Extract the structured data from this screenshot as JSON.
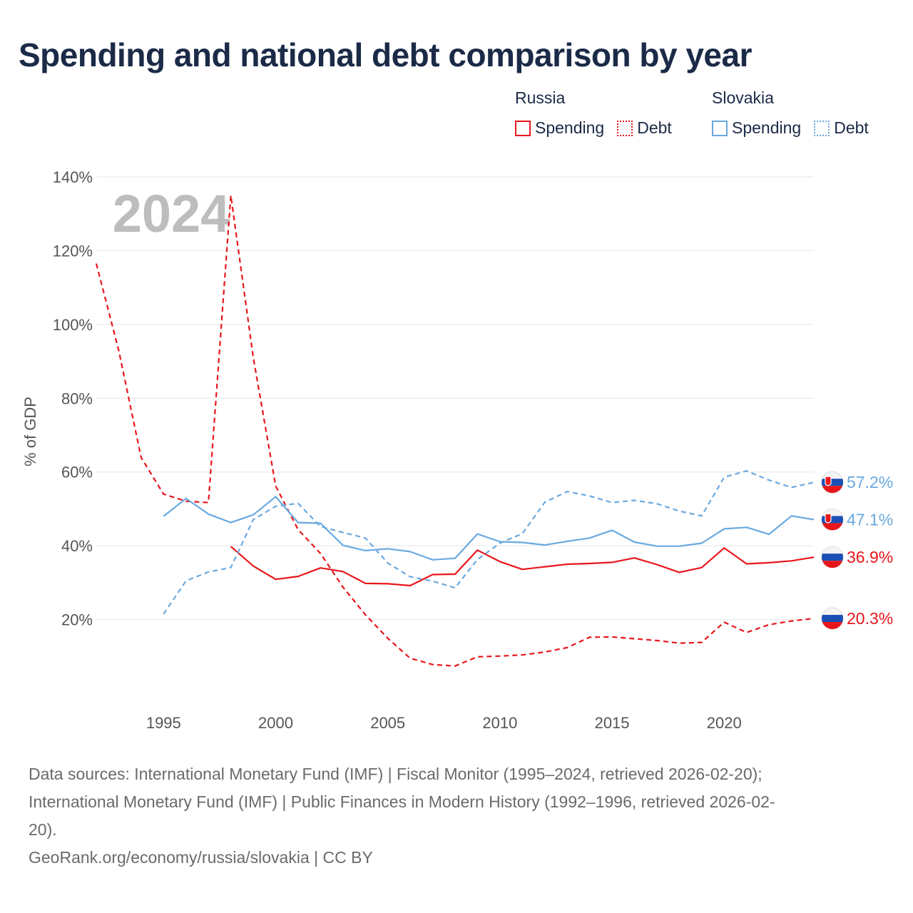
{
  "title": "Spending and national debt comparison by year",
  "legend": {
    "groups": [
      {
        "name": "Russia",
        "items": [
          {
            "label": "Spending"
          },
          {
            "label": "Debt"
          }
        ]
      },
      {
        "name": "Slovakia",
        "items": [
          {
            "label": "Spending"
          },
          {
            "label": "Debt"
          }
        ]
      }
    ]
  },
  "colors": {
    "russia": "#e8161b",
    "slovakia": "#6aa9e0",
    "grid": "#e6e6e6",
    "axis_text": "#555555",
    "year_watermark": "#bdbdbd"
  },
  "chart_data": {
    "type": "line",
    "title": "Spending and national debt comparison by year",
    "xlabel": "",
    "ylabel": "% of GDP",
    "year_label": "2024",
    "xlim": [
      1992,
      2024
    ],
    "ylim": [
      0,
      140
    ],
    "x_ticks": [
      "1995",
      "2000",
      "2005",
      "2010",
      "2015",
      "2020"
    ],
    "y_ticks": [
      "20%",
      "40%",
      "60%",
      "80%",
      "100%",
      "120%",
      "140%"
    ],
    "grid": true,
    "legend_position": "top-right",
    "series": [
      {
        "name": "Russia Spending",
        "country": "Russia",
        "metric": "Spending",
        "dash": "solid",
        "color": "#e8161b",
        "x": [
          1998,
          1999,
          2000,
          2001,
          2002,
          2003,
          2004,
          2005,
          2006,
          2007,
          2008,
          2009,
          2010,
          2011,
          2012,
          2013,
          2014,
          2015,
          2016,
          2017,
          2018,
          2019,
          2020,
          2021,
          2022,
          2023,
          2024
        ],
        "values": [
          39.8,
          34.5,
          30.9,
          31.7,
          34.0,
          33.0,
          29.8,
          29.7,
          29.2,
          32.2,
          32.3,
          38.8,
          35.7,
          33.6,
          34.3,
          35.0,
          35.2,
          35.5,
          36.7,
          34.9,
          32.8,
          34.1,
          39.4,
          35.1,
          35.4,
          35.9,
          36.9
        ],
        "end_label": "36.9%"
      },
      {
        "name": "Russia Debt",
        "country": "Russia",
        "metric": "Debt",
        "dash": "dashed",
        "color": "#e8161b",
        "x": [
          1992,
          1993,
          1994,
          1995,
          1996,
          1997,
          1998,
          1999,
          2000,
          2001,
          2002,
          2003,
          2004,
          2005,
          2006,
          2007,
          2008,
          2009,
          2010,
          2011,
          2012,
          2013,
          2014,
          2015,
          2016,
          2017,
          2018,
          2019,
          2020,
          2021,
          2022,
          2023,
          2024
        ],
        "values": [
          116.5,
          93.0,
          63.9,
          54.0,
          52.1,
          51.7,
          135.0,
          91.0,
          56.2,
          44.4,
          37.9,
          28.8,
          21.3,
          14.9,
          9.5,
          7.8,
          7.4,
          9.9,
          10.1,
          10.4,
          11.2,
          12.4,
          15.2,
          15.3,
          14.8,
          14.3,
          13.6,
          13.8,
          19.3,
          16.5,
          18.6,
          19.6,
          20.3
        ],
        "end_label": "20.3%"
      },
      {
        "name": "Slovakia Spending",
        "country": "Slovakia",
        "metric": "Spending",
        "dash": "solid",
        "color": "#6aa9e0",
        "x": [
          1995,
          1996,
          1997,
          1998,
          1999,
          2000,
          2001,
          2002,
          2003,
          2004,
          2005,
          2006,
          2007,
          2008,
          2009,
          2010,
          2011,
          2012,
          2013,
          2014,
          2015,
          2016,
          2017,
          2018,
          2019,
          2020,
          2021,
          2022,
          2023,
          2024
        ],
        "values": [
          48.0,
          52.8,
          48.6,
          46.3,
          48.4,
          53.3,
          46.3,
          46.1,
          40.1,
          38.7,
          39.2,
          38.4,
          36.2,
          36.6,
          43.2,
          41.1,
          40.9,
          40.2,
          41.2,
          42.1,
          44.2,
          41.0,
          39.9,
          39.9,
          40.7,
          44.6,
          45.0,
          43.1,
          48.1,
          47.1
        ],
        "end_label": "47.1%"
      },
      {
        "name": "Slovakia Debt",
        "country": "Slovakia",
        "metric": "Debt",
        "dash": "dashed",
        "color": "#6aa9e0",
        "x": [
          1995,
          1996,
          1997,
          1998,
          1999,
          2000,
          2001,
          2002,
          2003,
          2004,
          2005,
          2006,
          2007,
          2008,
          2009,
          2010,
          2011,
          2012,
          2013,
          2014,
          2015,
          2016,
          2017,
          2018,
          2019,
          2020,
          2021,
          2022,
          2023,
          2024
        ],
        "values": [
          21.5,
          30.5,
          32.9,
          34.1,
          47.1,
          50.7,
          51.5,
          45.2,
          43.6,
          42.1,
          35.3,
          31.6,
          30.4,
          28.6,
          36.3,
          40.7,
          43.3,
          51.8,
          54.7,
          53.5,
          51.7,
          52.3,
          51.4,
          49.4,
          48.1,
          58.6,
          60.3,
          57.8,
          55.8,
          57.2
        ],
        "end_label": "57.2%"
      }
    ]
  },
  "footer": {
    "line1": "Data sources: International Monetary Fund (IMF) | Fiscal Monitor (1995–2024, retrieved 2026-02-20);",
    "line2": "International Monetary Fund (IMF) | Public Finances in Modern History (1992–1996, retrieved 2026-02-",
    "line3": "20).",
    "line4": "GeoRank.org/economy/russia/slovakia | CC BY"
  }
}
